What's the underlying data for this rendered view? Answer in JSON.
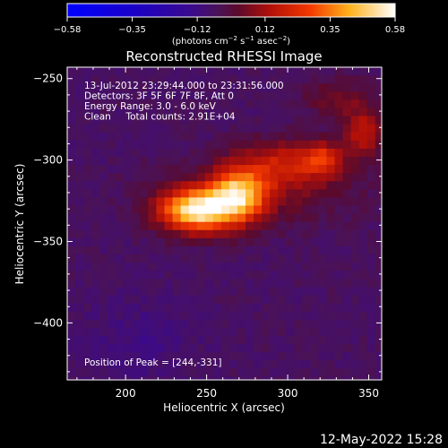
{
  "chart_data": {
    "type": "heatmap",
    "title": "Reconstructed RHESSI Image",
    "xlabel": "Heliocentric X (arcsec)",
    "ylabel": "Heliocentric Y (arcsec)",
    "xlim": [
      164,
      358
    ],
    "ylim": [
      -435,
      -243
    ],
    "x_ticks": [
      200,
      250,
      300,
      350
    ],
    "y_ticks": [
      -250,
      -300,
      -350,
      -400
    ],
    "colorbar": {
      "range": [
        -0.58,
        0.58
      ],
      "ticks": [
        -0.58,
        -0.35,
        -0.12,
        0.12,
        0.35,
        0.58
      ],
      "tick_labels": [
        "−0.58",
        "−0.35",
        "−0.12",
        "0.12",
        "0.35",
        "0.58"
      ],
      "unit_label": "(photons cm",
      "unit_exp1": "−2",
      "unit_mid": " s",
      "unit_exp2": "−1",
      "unit_mid2": " asec",
      "unit_exp3": "−2",
      "unit_end": ")"
    },
    "info_lines": [
      "13-Jul-2012 23:29:44.000 to 23:31:56.000",
      "Detectors: 3F 5F 6F 7F 8F, Att 0",
      "Energy Range: 3.0 - 6.0 keV",
      "Clean     Total counts: 2.91E+04"
    ],
    "peak_text": "Position of Peak = [244,-331]",
    "peak": {
      "x": 244,
      "y": -331,
      "value": 0.58
    },
    "sources": [
      {
        "x": 244,
        "y": -331,
        "sx": 16,
        "sy": 9,
        "amp": 0.58
      },
      {
        "x": 270,
        "y": -321,
        "sx": 12,
        "sy": 11,
        "amp": 0.44
      },
      {
        "x": 302,
        "y": -302,
        "sx": 22,
        "sy": 10,
        "amp": 0.22
      },
      {
        "x": 322,
        "y": -299,
        "sx": 7,
        "sy": 6,
        "amp": 0.2
      },
      {
        "x": 347,
        "y": -283,
        "sx": 9,
        "sy": 10,
        "amp": 0.22
      },
      {
        "x": 330,
        "y": -262,
        "sx": 14,
        "sy": 8,
        "amp": 0.12
      },
      {
        "x": 282,
        "y": -320,
        "sx": 40,
        "sy": 14,
        "amp": 0.1
      }
    ],
    "background": -0.06,
    "minimum": {
      "x": 207,
      "y": -412,
      "amp": -0.12
    }
  },
  "footer": {
    "timestamp": "12-May-2022 15:28"
  }
}
